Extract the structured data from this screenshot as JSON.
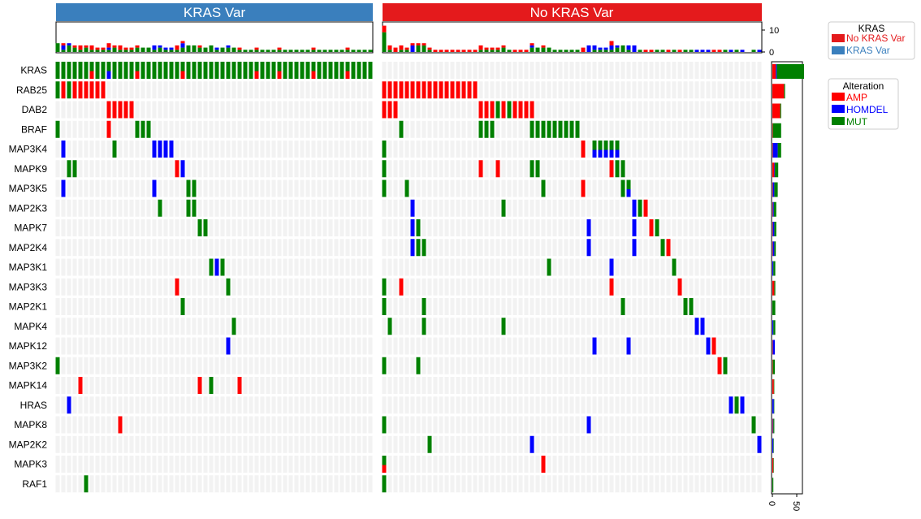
{
  "chart_data": {
    "type": "oncoprint",
    "colors": {
      "AMP": "#ff0000",
      "HOMDEL": "#0000ff",
      "MUT": "#008000",
      "empty": "#f2f2f2",
      "KRAS Var": "#3a7fbd",
      "No KRAS Var": "#e41a1c"
    },
    "groups": [
      {
        "label": "KRAS Var",
        "n": 56
      },
      {
        "label": "No KRAS Var",
        "n": 67
      }
    ],
    "genes": [
      "KRAS",
      "RAB25",
      "DAB2",
      "BRAF",
      "MAP3K4",
      "MAPK9",
      "MAP3K5",
      "MAP2K3",
      "MAPK7",
      "MAP2K4",
      "MAP3K1",
      "MAP3K3",
      "MAP2K1",
      "MAPK4",
      "MAPK12",
      "MAP3K2",
      "MAPK14",
      "HRAS",
      "MAPK8",
      "MAP2K2",
      "MAPK3",
      "RAF1"
    ],
    "alterations": {
      "KRAS": {
        "g1": {
          "MUT": [
            0,
            1,
            2,
            3,
            4,
            5,
            6,
            7,
            8,
            9,
            10,
            11,
            12,
            13,
            14,
            15,
            16,
            17,
            18,
            19,
            20,
            21,
            22,
            23,
            24,
            25,
            26,
            27,
            28,
            29,
            30,
            31,
            32,
            33,
            34,
            35,
            36,
            37,
            38,
            39,
            40,
            41,
            42,
            43,
            44,
            45,
            46,
            47,
            48,
            49,
            50,
            51,
            52,
            53,
            54,
            55
          ],
          "AMP": [
            6,
            14,
            22,
            35,
            39,
            45,
            51
          ],
          "HOMDEL": [
            9,
            22
          ]
        }
      },
      "RAB25": {
        "g1": {
          "MUT": [
            0,
            2
          ],
          "AMP": [
            1,
            3,
            4,
            5,
            6,
            7,
            8
          ]
        },
        "g2": {
          "AMP": [
            0,
            1,
            2,
            3,
            4,
            5,
            6,
            7,
            8,
            9,
            10,
            11,
            12,
            13,
            14,
            15,
            16
          ]
        }
      },
      "DAB2": {
        "g1": {
          "AMP": [
            9,
            10,
            11,
            12,
            13
          ]
        },
        "g2": {
          "AMP": [
            0,
            1,
            2,
            17,
            18,
            19,
            21,
            23,
            24,
            25,
            26
          ],
          "MUT": [
            20,
            22
          ]
        }
      },
      "BRAF": {
        "g1": {
          "MUT": [
            0,
            14,
            15,
            16
          ],
          "AMP": [
            9
          ]
        },
        "g2": {
          "MUT": [
            3,
            17,
            18,
            19,
            26,
            27,
            28,
            29,
            30,
            31,
            32,
            33,
            34
          ]
        }
      },
      "MAP3K4": {
        "g1": {
          "HOMDEL": [
            1,
            17,
            18,
            19,
            20
          ],
          "MUT": [
            10
          ]
        },
        "g2": {
          "MUT": [
            0,
            37,
            38,
            39,
            40,
            41
          ],
          "AMP": [
            35
          ],
          "HOMDEL": [
            37,
            38,
            39,
            40,
            41
          ]
        }
      },
      "MAPK9": {
        "g1": {
          "MUT": [
            2,
            3
          ],
          "AMP": [
            21
          ],
          "HOMDEL": [
            22
          ]
        },
        "g2": {
          "MUT": [
            0,
            26,
            27,
            41,
            42
          ],
          "AMP": [
            17,
            20,
            40
          ]
        }
      },
      "MAP3K5": {
        "g1": {
          "HOMDEL": [
            1,
            17
          ],
          "MUT": [
            23,
            24
          ]
        },
        "g2": {
          "MUT": [
            0,
            4,
            28,
            42,
            43
          ],
          "AMP": [
            35
          ],
          "HOMDEL": [
            43
          ]
        }
      },
      "MAP2K3": {
        "g1": {
          "MUT": [
            18,
            23,
            24
          ]
        },
        "g2": {
          "HOMDEL": [
            5,
            44
          ],
          "MUT": [
            21,
            45
          ],
          "AMP": [
            46
          ]
        }
      },
      "MAPK7": {
        "g1": {
          "MUT": [
            25,
            26
          ]
        },
        "g2": {
          "HOMDEL": [
            5,
            36,
            44
          ],
          "MUT": [
            6,
            48
          ],
          "AMP": [
            47
          ]
        }
      },
      "MAP2K4": {
        "g1": {},
        "g2": {
          "HOMDEL": [
            5,
            36,
            44
          ],
          "MUT": [
            6,
            7,
            49
          ],
          "AMP": [
            50
          ]
        }
      },
      "MAP3K1": {
        "g1": {
          "MUT": [
            27,
            29
          ],
          "HOMDEL": [
            28
          ]
        },
        "g2": {
          "MUT": [
            29,
            51
          ],
          "HOMDEL": [
            40
          ]
        }
      },
      "MAP3K3": {
        "g1": {
          "AMP": [
            21
          ],
          "MUT": [
            30
          ]
        },
        "g2": {
          "MUT": [
            0
          ],
          "AMP": [
            3,
            40,
            52
          ]
        }
      },
      "MAP2K1": {
        "g1": {
          "MUT": [
            22
          ]
        },
        "g2": {
          "MUT": [
            0,
            7,
            42,
            53,
            54
          ]
        }
      },
      "MAPK4": {
        "g1": {
          "MUT": [
            31
          ]
        },
        "g2": {
          "MUT": [
            1,
            7,
            21
          ],
          "HOMDEL": [
            55,
            56
          ]
        }
      },
      "MAPK12": {
        "g1": {
          "HOMDEL": [
            30
          ]
        },
        "g2": {
          "HOMDEL": [
            37,
            43,
            57
          ],
          "AMP": [
            58
          ]
        }
      },
      "MAP3K2": {
        "g1": {
          "MUT": [
            0
          ]
        },
        "g2": {
          "MUT": [
            0,
            6,
            60
          ],
          "AMP": [
            59
          ]
        }
      },
      "MAPK14": {
        "g1": {
          "AMP": [
            4,
            25,
            32
          ],
          "MUT": [
            27
          ]
        },
        "g2": {}
      },
      "HRAS": {
        "g1": {
          "HOMDEL": [
            2
          ]
        },
        "g2": {
          "HOMDEL": [
            61,
            63
          ],
          "MUT": [
            62
          ]
        }
      },
      "MAPK8": {
        "g1": {
          "AMP": [
            11
          ]
        },
        "g2": {
          "MUT": [
            0,
            65
          ],
          "HOMDEL": [
            36
          ]
        }
      },
      "MAP2K2": {
        "g1": {},
        "g2": {
          "MUT": [
            8
          ],
          "HOMDEL": [
            26,
            66
          ]
        }
      },
      "MAPK3": {
        "g1": {},
        "g2": {
          "MUT": [
            0
          ],
          "AMP": [
            0,
            28
          ]
        }
      },
      "RAF1": {
        "g1": {
          "MUT": [
            5
          ]
        },
        "g2": {
          "MUT": [
            0
          ]
        }
      }
    },
    "right_axis": {
      "ticks": [
        "0",
        "50"
      ]
    },
    "top_axis": {
      "ticks": [
        "0",
        "10"
      ]
    },
    "legend_kras": {
      "title": "KRAS",
      "items": [
        {
          "label": "No KRAS Var",
          "color": "#e41a1c"
        },
        {
          "label": "KRAS Var",
          "color": "#3a7fbd"
        }
      ]
    },
    "legend_alteration": {
      "title": "Alteration",
      "items": [
        {
          "label": "AMP",
          "color": "#ff0000"
        },
        {
          "label": "HOMDEL",
          "color": "#0000ff"
        },
        {
          "label": "MUT",
          "color": "#008000"
        }
      ]
    }
  }
}
